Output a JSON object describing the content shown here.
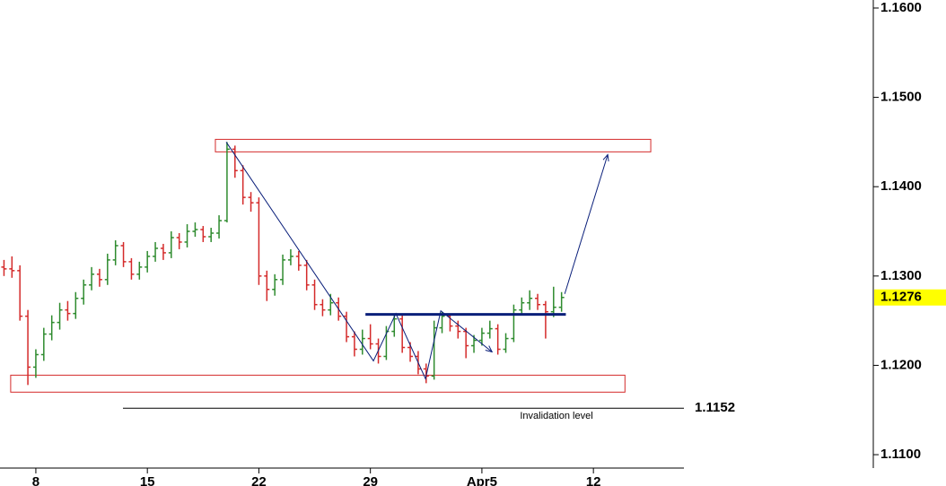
{
  "chart_data": {
    "type": "ohlc",
    "up_color": "#2e8b2e",
    "down_color": "#d42a2a",
    "x": [
      6,
      6.5,
      7,
      7.5,
      8,
      8.5,
      9,
      9.5,
      10,
      10.5,
      11,
      11.5,
      12,
      12.5,
      13,
      13.5,
      14,
      14.5,
      15,
      15.5,
      16,
      16.5,
      17,
      17.5,
      18,
      18.5,
      19,
      19.5,
      20,
      20.5,
      21,
      21.5,
      22,
      22.5,
      23,
      23.5,
      24,
      24.5,
      25,
      25.5,
      26,
      26.5,
      27,
      27.5,
      28,
      28.5,
      29,
      29.5,
      30,
      30.5,
      31,
      31.5,
      32,
      32.5,
      33,
      33.5,
      34,
      34.5,
      35,
      35.5,
      36,
      36.5,
      37,
      37.5,
      38,
      38.5,
      39,
      39.5,
      40,
      40.5,
      41
    ],
    "bars": [
      [
        1.131,
        1.1318,
        1.13,
        1.1308
      ],
      [
        1.1308,
        1.1322,
        1.1298,
        1.1306
      ],
      [
        1.1306,
        1.1312,
        1.125,
        1.1255
      ],
      [
        1.1255,
        1.1262,
        1.1178,
        1.1198
      ],
      [
        1.1198,
        1.1218,
        1.1186,
        1.1212
      ],
      [
        1.1212,
        1.1242,
        1.1205,
        1.1235
      ],
      [
        1.1235,
        1.1256,
        1.1228,
        1.1248
      ],
      [
        1.1248,
        1.127,
        1.124,
        1.1262
      ],
      [
        1.1262,
        1.1272,
        1.125,
        1.1258
      ],
      [
        1.1258,
        1.1282,
        1.1252,
        1.1275
      ],
      [
        1.1275,
        1.1296,
        1.1268,
        1.129
      ],
      [
        1.129,
        1.131,
        1.1284,
        1.1302
      ],
      [
        1.1302,
        1.1308,
        1.1288,
        1.1296
      ],
      [
        1.1296,
        1.1325,
        1.129,
        1.1318
      ],
      [
        1.1318,
        1.134,
        1.1312,
        1.1334
      ],
      [
        1.1334,
        1.1338,
        1.131,
        1.1316
      ],
      [
        1.1316,
        1.132,
        1.1296,
        1.1302
      ],
      [
        1.1302,
        1.1316,
        1.1296,
        1.131
      ],
      [
        1.131,
        1.1328,
        1.1304,
        1.1322
      ],
      [
        1.1322,
        1.1338,
        1.1316,
        1.1331
      ],
      [
        1.1331,
        1.1336,
        1.1318,
        1.1326
      ],
      [
        1.1326,
        1.135,
        1.132,
        1.1343
      ],
      [
        1.1343,
        1.1348,
        1.133,
        1.1338
      ],
      [
        1.1338,
        1.1358,
        1.1332,
        1.135
      ],
      [
        1.135,
        1.136,
        1.1344,
        1.1352
      ],
      [
        1.1352,
        1.1356,
        1.1338,
        1.1344
      ],
      [
        1.1344,
        1.1354,
        1.1338,
        1.1348
      ],
      [
        1.1348,
        1.1368,
        1.1342,
        1.1362
      ],
      [
        1.1362,
        1.145,
        1.136,
        1.1442
      ],
      [
        1.1442,
        1.1446,
        1.141,
        1.1418
      ],
      [
        1.1418,
        1.1424,
        1.138,
        1.1388
      ],
      [
        1.1388,
        1.1394,
        1.1372,
        1.1382
      ],
      [
        1.1382,
        1.1388,
        1.129,
        1.13
      ],
      [
        1.13,
        1.1306,
        1.1272,
        1.1285
      ],
      [
        1.1285,
        1.1302,
        1.1278,
        1.1296
      ],
      [
        1.1296,
        1.1324,
        1.129,
        1.1318
      ],
      [
        1.1318,
        1.133,
        1.1312,
        1.1322
      ],
      [
        1.1322,
        1.1328,
        1.1306,
        1.1312
      ],
      [
        1.1312,
        1.1318,
        1.1284,
        1.129
      ],
      [
        1.129,
        1.1296,
        1.1262,
        1.1268
      ],
      [
        1.1268,
        1.1274,
        1.1255,
        1.1262
      ],
      [
        1.1262,
        1.128,
        1.1256,
        1.127
      ],
      [
        1.127,
        1.1276,
        1.125,
        1.1255
      ],
      [
        1.1255,
        1.126,
        1.1226,
        1.1232
      ],
      [
        1.1232,
        1.1238,
        1.121,
        1.1218
      ],
      [
        1.1218,
        1.124,
        1.1212,
        1.123
      ],
      [
        1.123,
        1.1246,
        1.1218,
        1.1224
      ],
      [
        1.1224,
        1.123,
        1.1202,
        1.121
      ],
      [
        1.121,
        1.1244,
        1.1206,
        1.1238
      ],
      [
        1.1238,
        1.1258,
        1.1232,
        1.1252
      ],
      [
        1.1252,
        1.1256,
        1.1214,
        1.122
      ],
      [
        1.122,
        1.1226,
        1.1204,
        1.121
      ],
      [
        1.121,
        1.1216,
        1.119,
        1.1196
      ],
      [
        1.1196,
        1.1202,
        1.118,
        1.1188
      ],
      [
        1.1188,
        1.125,
        1.1184,
        1.1242
      ],
      [
        1.1242,
        1.126,
        1.1236,
        1.1255
      ],
      [
        1.1255,
        1.1258,
        1.1238,
        1.1244
      ],
      [
        1.1244,
        1.125,
        1.123,
        1.1238
      ],
      [
        1.1238,
        1.1242,
        1.1208,
        1.1222
      ],
      [
        1.1222,
        1.1234,
        1.1214,
        1.1228
      ],
      [
        1.1228,
        1.1242,
        1.1222,
        1.1236
      ],
      [
        1.1236,
        1.125,
        1.123,
        1.1241
      ],
      [
        1.1241,
        1.1246,
        1.1212,
        1.1218
      ],
      [
        1.1218,
        1.1236,
        1.1214,
        1.123
      ],
      [
        1.123,
        1.1268,
        1.1226,
        1.1262
      ],
      [
        1.1262,
        1.1276,
        1.1256,
        1.127
      ],
      [
        1.127,
        1.1284,
        1.1262,
        1.1275
      ],
      [
        1.1275,
        1.128,
        1.1262,
        1.1268
      ],
      [
        1.1268,
        1.1272,
        1.123,
        1.126
      ],
      [
        1.126,
        1.1288,
        1.1254,
        1.1265
      ],
      [
        1.1265,
        1.1282,
        1.126,
        1.1276
      ]
    ],
    "xlim": [
      5.75,
      60.4
    ],
    "ylim": [
      1.1085,
      1.1609
    ],
    "xticks": [
      8,
      15,
      22,
      29,
      {
        "value": 36,
        "label": "Apr5"
      },
      {
        "value": 43,
        "label": "12"
      }
    ],
    "yticks": [
      {
        "value": 1.16,
        "label": "1.1600"
      },
      {
        "value": 1.15,
        "label": "1.1500"
      },
      {
        "value": 1.14,
        "label": "1.1400"
      },
      {
        "value": 1.13,
        "label": "1.1300"
      },
      {
        "value": 1.12,
        "label": "1.1200"
      },
      {
        "value": 1.11,
        "label": "1.1100"
      }
    ],
    "last_price": 1.1276,
    "invalidation": {
      "value": 1.1152,
      "label": "Invalidation level"
    },
    "zones": [
      {
        "x": [
          19.27,
          46.6
        ],
        "y": [
          1.1439,
          1.1453
        ],
        "color": "#d42a2a"
      },
      {
        "x": [
          6.42,
          44.98
        ],
        "y": [
          1.117,
          1.1189
        ],
        "color": "#d42a2a"
      }
    ],
    "neckline": {
      "x": [
        28.69,
        41.27
      ],
      "y": 1.1257,
      "color": "#0a1f7a"
    },
    "paths": [
      {
        "x": [
          19.95,
          29.19,
          30.6,
          32.46,
          33.42,
          36.64
        ],
        "y": [
          1.145,
          1.1205,
          1.1258,
          1.1185,
          1.1261,
          1.1215
        ],
        "color": "#0a1f7a"
      },
      {
        "x": [
          41.2,
          43.9
        ],
        "y": [
          1.128,
          1.1436
        ],
        "color": "#0a1f7a"
      }
    ]
  }
}
